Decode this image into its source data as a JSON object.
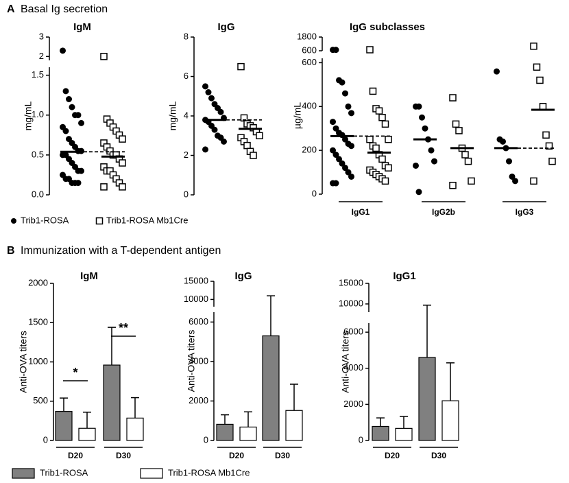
{
  "panels": [
    {
      "label": "A",
      "title": "Basal Ig secretion",
      "legend": [
        {
          "name": "Trib1-ROSA",
          "marker": "circle"
        },
        {
          "name": "Trib1-ROSA Mb1Cre",
          "marker": "square"
        }
      ]
    },
    {
      "label": "B",
      "title": "Immunization with a T-dependent antigen",
      "legend": [
        {
          "name": "Trib1-ROSA",
          "color": "#808080"
        },
        {
          "name": "Trib1-ROSA Mb1Cre",
          "color": "#ffffff"
        }
      ]
    }
  ],
  "chart_data": [
    {
      "type": "strip",
      "title": "IgM",
      "ylabel": "mg/mL",
      "categories": [
        null
      ],
      "ylim": [
        0,
        1.6
      ],
      "yticks": [
        {
          "value": 0,
          "label": "0.0"
        },
        0.5,
        {
          "value": 1,
          "label": "1.0"
        },
        1.5
      ],
      "upper_ylim": [
        1.8,
        3
      ],
      "upper_yticks": [
        2,
        3
      ],
      "dashed_reference": [
        true
      ],
      "series": [
        {
          "marker": "circle",
          "values": [
            [
              2.3,
              1.3,
              1.2,
              1.1,
              1.0,
              1.0,
              0.9,
              0.85,
              0.8,
              0.7,
              0.65,
              0.6,
              0.55,
              0.55,
              0.5,
              0.5,
              0.45,
              0.4,
              0.35,
              0.3,
              0.3,
              0.25,
              0.2,
              0.2,
              0.15,
              0.15,
              0.15
            ]
          ],
          "means": [
            0.54
          ]
        },
        {
          "marker": "square",
          "values": [
            [
              2.0,
              0.95,
              0.9,
              0.85,
              0.8,
              0.75,
              0.7,
              0.65,
              0.6,
              0.55,
              0.5,
              0.5,
              0.45,
              0.4,
              0.35,
              0.3,
              0.3,
              0.25,
              0.2,
              0.15,
              0.1,
              0.1
            ]
          ],
          "means": [
            0.48
          ]
        }
      ]
    },
    {
      "type": "strip",
      "title": "IgG",
      "ylabel": "mg/mL",
      "categories": [
        null
      ],
      "ylim": [
        0,
        8
      ],
      "yticks": [
        0,
        2,
        4,
        6,
        8
      ],
      "dashed_reference": [
        true
      ],
      "series": [
        {
          "marker": "circle",
          "values": [
            [
              5.5,
              5.2,
              4.9,
              4.6,
              4.4,
              4.2,
              3.9,
              3.8,
              3.7,
              3.5,
              3.3,
              3.0,
              2.9,
              2.7,
              2.3
            ]
          ],
          "means": [
            3.8
          ]
        },
        {
          "marker": "square",
          "values": [
            [
              6.5,
              3.9,
              3.6,
              3.5,
              3.4,
              3.2,
              3.0,
              2.9,
              2.7,
              2.5,
              2.2,
              2.0
            ]
          ],
          "means": [
            3.35
          ]
        }
      ]
    },
    {
      "type": "strip",
      "title": "IgG subclasses",
      "ylabel": "µg/mL",
      "categories": [
        "IgG1",
        "IgG2b",
        "IgG3"
      ],
      "ylim": [
        0,
        620
      ],
      "yticks": [
        0,
        200,
        400,
        600
      ],
      "upper_ylim": [
        600,
        1800
      ],
      "upper_yticks": [
        600,
        1800
      ],
      "dashed_reference": [
        true,
        false,
        true
      ],
      "series": [
        {
          "marker": "circle",
          "values": [
            [
              680,
              680,
              520,
              510,
              460,
              400,
              370,
              330,
              300,
              280,
              270,
              250,
              230,
              220,
              200,
              180,
              160,
              140,
              120,
              100,
              80,
              50,
              50
            ],
            [
              400,
              400,
              350,
              300,
              250,
              200,
              150,
              130,
              10
            ],
            [
              560,
              250,
              240,
              210,
              150,
              80,
              60
            ]
          ],
          "means": [
            265,
            250,
            210
          ]
        },
        {
          "marker": "square",
          "values": [
            [
              690,
              470,
              390,
              380,
              350,
              320,
              250,
              250,
              220,
              210,
              180,
              160,
              130,
              120,
              110,
              100,
              90,
              80,
              70,
              60
            ],
            [
              440,
              320,
              290,
              210,
              180,
              150,
              60,
              40
            ],
            [
              1000,
              580,
              520,
              400,
              270,
              220,
              150,
              60
            ]
          ],
          "means": [
            190,
            210,
            385
          ]
        }
      ]
    },
    {
      "type": "bar",
      "title": "IgM",
      "ylabel": "Anti-OVA titers",
      "categories": [
        "D20",
        "D30"
      ],
      "ylim": [
        0,
        2000
      ],
      "yticks": [
        0,
        500,
        1000,
        1500,
        2000
      ],
      "annotations": [
        "*",
        "**"
      ],
      "series": [
        {
          "color": "#808080",
          "values": [
            370,
            960
          ],
          "errors": [
            170,
            480
          ]
        },
        {
          "color": "#ffffff",
          "values": [
            155,
            285
          ],
          "errors": [
            205,
            260
          ]
        }
      ]
    },
    {
      "type": "bar",
      "title": "IgG",
      "ylabel": "Anti-OVA titers",
      "categories": [
        "D20",
        "D30"
      ],
      "ylim": [
        0,
        6500
      ],
      "yticks": [
        0,
        2000,
        4000,
        6000
      ],
      "upper_ylim": [
        8000,
        15000
      ],
      "upper_yticks": [
        10000,
        15000
      ],
      "series": [
        {
          "color": "#808080",
          "values": [
            820,
            5300
          ],
          "errors": [
            480,
            5700
          ]
        },
        {
          "color": "#ffffff",
          "values": [
            680,
            1520
          ],
          "errors": [
            770,
            1330
          ]
        }
      ]
    },
    {
      "type": "bar",
      "title": "IgG1",
      "ylabel": "Anti-OVA titers",
      "categories": [
        "D20",
        "D30"
      ],
      "ylim": [
        0,
        6500
      ],
      "yticks": [
        0,
        2000,
        4000,
        6000
      ],
      "upper_ylim": [
        8000,
        15000
      ],
      "upper_yticks": [
        10000,
        15000
      ],
      "series": [
        {
          "color": "#808080",
          "values": [
            780,
            4600
          ],
          "errors": [
            470,
            5100
          ]
        },
        {
          "color": "#ffffff",
          "values": [
            670,
            2200
          ],
          "errors": [
            660,
            2100
          ]
        }
      ]
    }
  ]
}
